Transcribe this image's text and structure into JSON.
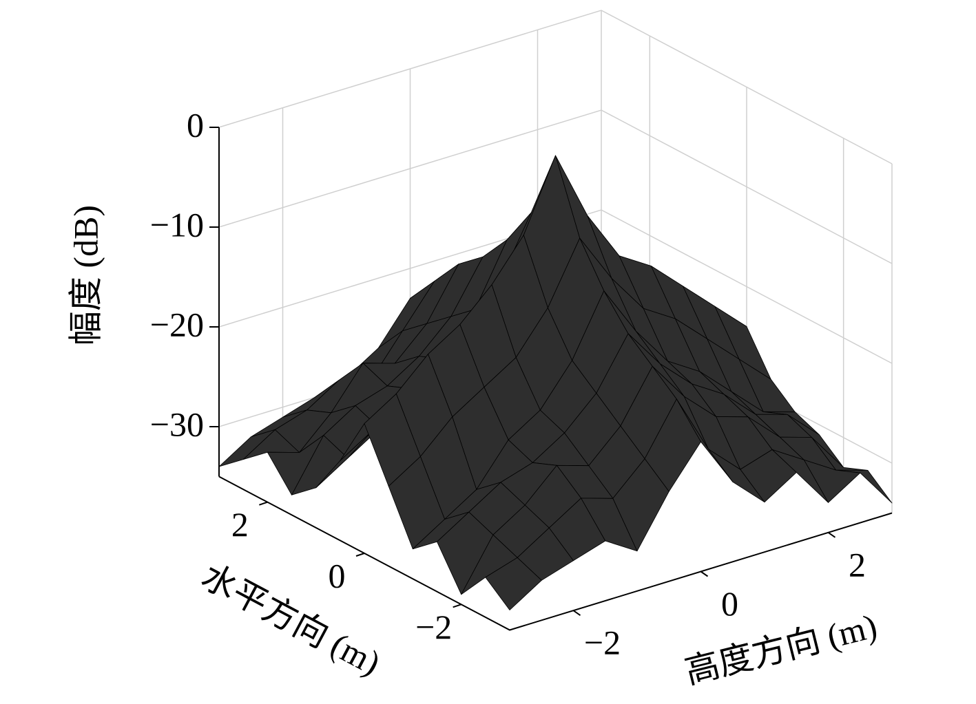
{
  "chart_data": {
    "type": "surface",
    "xlabel": "水平方向 (m)",
    "ylabel": "高度方向 (m)",
    "zlabel": "幅度 (dB)",
    "xlim": [
      -3,
      3
    ],
    "ylim": [
      -3,
      3
    ],
    "zlim": [
      -35,
      0
    ],
    "xticks": [
      {
        "value": -2,
        "label": "−2"
      },
      0,
      2
    ],
    "yticks": [
      {
        "value": -2,
        "label": "−2"
      },
      0,
      2
    ],
    "zticks": [
      {
        "value": -30,
        "label": "−30"
      },
      {
        "value": -20,
        "label": "−20"
      },
      {
        "value": -10,
        "label": "−10"
      },
      0
    ],
    "grid": true,
    "color": "#2e2e2e",
    "edgecolor": "#000000",
    "x": [
      -3,
      -2.5,
      -2,
      -1.5,
      -1,
      -0.5,
      0,
      0.5,
      1,
      1.5,
      2,
      2.5,
      3
    ],
    "y": [
      -3,
      -2.5,
      -2,
      -1.5,
      -1,
      -0.5,
      0,
      0.5,
      1,
      1.5,
      2,
      2.5,
      3
    ],
    "z": [
      [
        -33,
        -31,
        -34,
        -30,
        -32,
        -27,
        -22,
        -27,
        -31,
        -33,
        -30,
        -32,
        -34
      ],
      [
        -31,
        -30,
        -29,
        -28,
        -30,
        -25,
        -20,
        -25,
        -29,
        -28,
        -31,
        -30,
        -32
      ],
      [
        -30,
        -28,
        -27,
        -26,
        -28,
        -22,
        -17,
        -22,
        -27,
        -26,
        -28,
        -29,
        -31
      ],
      [
        -29,
        -26,
        -24,
        -25,
        -24,
        -20,
        -15,
        -20,
        -24,
        -25,
        -24,
        -27,
        -30
      ],
      [
        -31,
        -27,
        -25,
        -23,
        -22,
        -18,
        -12,
        -18,
        -22,
        -23,
        -25,
        -28,
        -29
      ],
      [
        -26,
        -24,
        -22,
        -20,
        -18,
        -14,
        -8,
        -14,
        -18,
        -20,
        -22,
        -24,
        -27
      ],
      [
        -22,
        -19,
        -17,
        -15,
        -12,
        -8,
        -1,
        -8,
        -12,
        -15,
        -17,
        -20,
        -23
      ],
      [
        -27,
        -25,
        -21,
        -19,
        -17,
        -13,
        -8,
        -13,
        -17,
        -19,
        -21,
        -24,
        -26
      ],
      [
        -30,
        -28,
        -24,
        -22,
        -21,
        -17,
        -13,
        -17,
        -21,
        -22,
        -24,
        -27,
        -29
      ],
      [
        -28,
        -27,
        -25,
        -24,
        -23,
        -19,
        -15,
        -19,
        -23,
        -24,
        -26,
        -28,
        -30
      ],
      [
        -32,
        -29,
        -28,
        -27,
        -26,
        -22,
        -18,
        -22,
        -26,
        -27,
        -29,
        -30,
        -32
      ],
      [
        -30,
        -31,
        -29,
        -28,
        -29,
        -25,
        -21,
        -25,
        -28,
        -29,
        -30,
        -31,
        -33
      ],
      [
        -34,
        -32,
        -33,
        -31,
        -30,
        -28,
        -24,
        -28,
        -31,
        -32,
        -33,
        -32,
        -34
      ]
    ]
  }
}
